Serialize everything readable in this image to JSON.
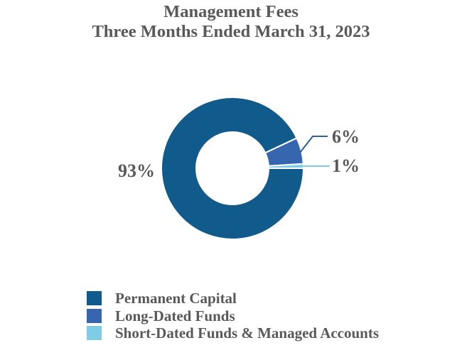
{
  "chart_data": {
    "type": "pie",
    "subtype": "donut",
    "title": "Management Fees",
    "subtitle": "Three Months Ended March 31, 2023",
    "categories": [
      "Permanent Capital",
      "Long-Dated Funds",
      "Short-Dated Funds & Managed Accounts"
    ],
    "values": [
      93,
      6,
      1
    ],
    "unit": "%",
    "data_labels": [
      "93%",
      "6%",
      "1%"
    ],
    "colors": [
      "#115A8C",
      "#3566AF",
      "#7FCCE5"
    ],
    "leader_line_colors": [
      "#2E5FA3",
      "#7FCCE5"
    ],
    "separator_color": "#FFFFFF",
    "text_color": "#595959",
    "start_angle_deg": 0,
    "direction": "clockwise",
    "donut_hole_ratio": 0.51,
    "legend_position": "bottom-left",
    "grid": false
  }
}
